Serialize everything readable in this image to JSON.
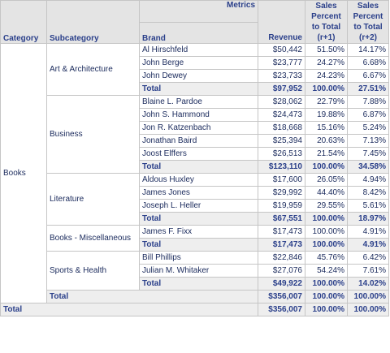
{
  "headers": {
    "metrics": "Metrics",
    "category": "Category",
    "subcategory": "Subcategory",
    "brand": "Brand",
    "revenue": "Revenue",
    "pct_r1_lines": [
      "Sales",
      "Percent",
      "to Total",
      "(r+1)"
    ],
    "pct_r2_lines": [
      "Sales",
      "Percent",
      "to Total",
      "(r+2)"
    ]
  },
  "category": "Books",
  "groups": [
    {
      "subcategory": "Art & Architecture",
      "rows": [
        {
          "brand": "Al Hirschfeld",
          "revenue": "$50,442",
          "p1": "51.50%",
          "p2": "14.17%"
        },
        {
          "brand": "John Berge",
          "revenue": "$23,777",
          "p1": "24.27%",
          "p2": "6.68%"
        },
        {
          "brand": "John Dewey",
          "revenue": "$23,733",
          "p1": "24.23%",
          "p2": "6.67%"
        }
      ],
      "total": {
        "label": "Total",
        "revenue": "$97,952",
        "p1": "100.00%",
        "p2": "27.51%"
      }
    },
    {
      "subcategory": "Business",
      "rows": [
        {
          "brand": "Blaine L. Pardoe",
          "revenue": "$28,062",
          "p1": "22.79%",
          "p2": "7.88%"
        },
        {
          "brand": "John S. Hammond",
          "revenue": "$24,473",
          "p1": "19.88%",
          "p2": "6.87%"
        },
        {
          "brand": "Jon R. Katzenbach",
          "revenue": "$18,668",
          "p1": "15.16%",
          "p2": "5.24%"
        },
        {
          "brand": "Jonathan Baird",
          "revenue": "$25,394",
          "p1": "20.63%",
          "p2": "7.13%"
        },
        {
          "brand": "Joost Elffers",
          "revenue": "$26,513",
          "p1": "21.54%",
          "p2": "7.45%"
        }
      ],
      "total": {
        "label": "Total",
        "revenue": "$123,110",
        "p1": "100.00%",
        "p2": "34.58%"
      }
    },
    {
      "subcategory": "Literature",
      "rows": [
        {
          "brand": "Aldous Huxley",
          "revenue": "$17,600",
          "p1": "26.05%",
          "p2": "4.94%"
        },
        {
          "brand": "James Jones",
          "revenue": "$29,992",
          "p1": "44.40%",
          "p2": "8.42%"
        },
        {
          "brand": "Joseph L. Heller",
          "revenue": "$19,959",
          "p1": "29.55%",
          "p2": "5.61%"
        }
      ],
      "total": {
        "label": "Total",
        "revenue": "$67,551",
        "p1": "100.00%",
        "p2": "18.97%"
      }
    },
    {
      "subcategory": "Books - Miscellaneous",
      "rows": [
        {
          "brand": "James F. Fixx",
          "revenue": "$17,473",
          "p1": "100.00%",
          "p2": "4.91%"
        }
      ],
      "total": {
        "label": "Total",
        "revenue": "$17,473",
        "p1": "100.00%",
        "p2": "4.91%"
      }
    },
    {
      "subcategory": "Sports & Health",
      "rows": [
        {
          "brand": "Bill Phillips",
          "revenue": "$22,846",
          "p1": "45.76%",
          "p2": "6.42%"
        },
        {
          "brand": "Julian M. Whitaker",
          "revenue": "$27,076",
          "p1": "54.24%",
          "p2": "7.61%"
        }
      ],
      "total": {
        "label": "Total",
        "revenue": "$49,922",
        "p1": "100.00%",
        "p2": "14.02%"
      }
    }
  ],
  "category_total": {
    "label": "Total",
    "revenue": "$356,007",
    "p1": "100.00%",
    "p2": "100.00%"
  },
  "grand_total": {
    "label": "Total",
    "revenue": "$356,007",
    "p1": "100.00%",
    "p2": "100.00%"
  }
}
